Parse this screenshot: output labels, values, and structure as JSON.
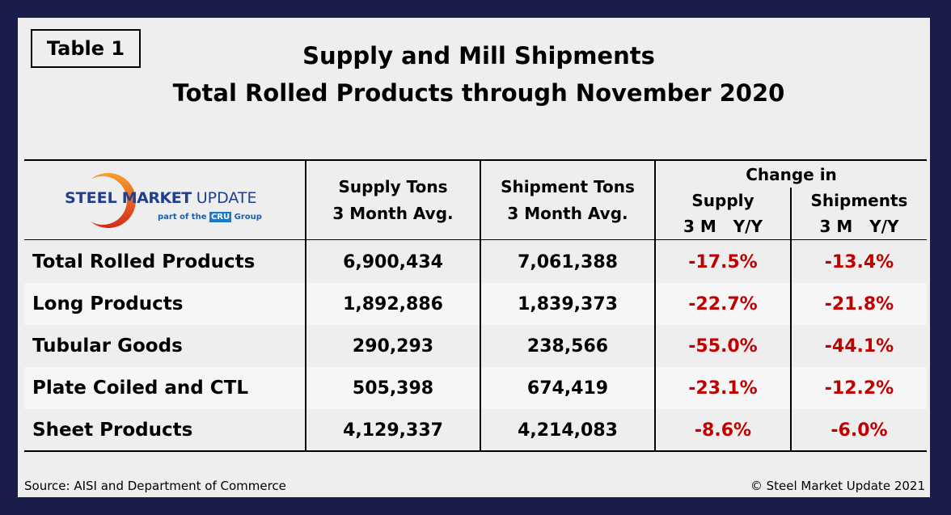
{
  "table_label": "Table 1",
  "title_line1": "Supply and Mill Shipments",
  "title_line2": "Total Rolled Products through November 2020",
  "logo": {
    "text_bold": "STEEL",
    "text_mid": "MARKET",
    "text_light": "UPDATE",
    "tagline_pre": "part of the",
    "tagline_badge": "CRU",
    "tagline_post": "Group"
  },
  "headers": {
    "supply": [
      "Supply Tons",
      "3 Month Avg."
    ],
    "shipment": [
      "Shipment Tons",
      "3 Month Avg."
    ],
    "change_in": "Change in",
    "change_supply": "Supply",
    "change_shipments": "Shipments",
    "period": "3 M   Y/Y"
  },
  "rows": [
    {
      "label": "Total Rolled Products",
      "supply": "6,900,434",
      "shipments": "7,061,388",
      "supply_change": "-17.5%",
      "ship_change": "-13.4%"
    },
    {
      "label": "Long Products",
      "supply": "1,892,886",
      "shipments": "1,839,373",
      "supply_change": "-22.7%",
      "ship_change": "-21.8%"
    },
    {
      "label": "Tubular Goods",
      "supply": "290,293",
      "shipments": "238,566",
      "supply_change": "-55.0%",
      "ship_change": "-44.1%"
    },
    {
      "label": "Plate Coiled and CTL",
      "supply": "505,398",
      "shipments": "674,419",
      "supply_change": "-23.1%",
      "ship_change": "-12.2%"
    },
    {
      "label": "Sheet Products",
      "supply": "4,129,337",
      "shipments": "4,214,083",
      "supply_change": "-8.6%",
      "ship_change": "-6.0%"
    }
  ],
  "source": "Source: AISI and Department of Commerce",
  "copyright": "© Steel Market Update 2021",
  "colors": {
    "frame": "#1a1d4a",
    "negative": "#c00000",
    "logo_blue": "#1f3f8f"
  }
}
